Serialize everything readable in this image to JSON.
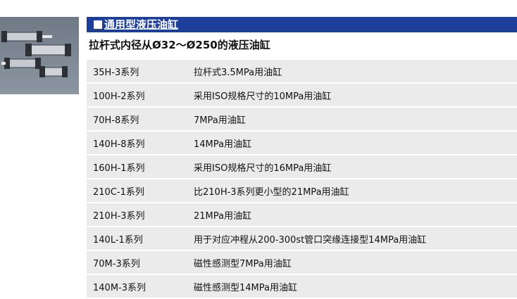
{
  "header": {
    "title": "通用型液压油缸"
  },
  "subtitle": "拉杆式内径从Ø32～Ø250的液压油缸",
  "series": [
    {
      "model": "35H-3系列",
      "desc": "拉杆式3.5MPa用油缸"
    },
    {
      "model": "100H-2系列",
      "desc": "采用ISO规格尺寸的10MPa用油缸"
    },
    {
      "model": "70H-8系列",
      "desc": "7MPa用油缸"
    },
    {
      "model": "140H-8系列",
      "desc": "14MPa用油缸"
    },
    {
      "model": "160H-1系列",
      "desc": "采用ISO规格尺寸的16MPa用油缸"
    },
    {
      "model": "210C-1系列",
      "desc": "比210H-3系列更小型的21MPa用油缸"
    },
    {
      "model": "210H-3系列",
      "desc": "21MPa用油缸"
    },
    {
      "model": "140L-1系列",
      "desc": "用于对应冲程从200-300st管口突缘连接型14MPa用油缸"
    },
    {
      "model": "70M-3系列",
      "desc": "磁性感测型7MPa用油缸"
    },
    {
      "model": "140M-3系列",
      "desc": "磁性感测型14MPa用油缸"
    }
  ],
  "colors": {
    "banner": "#1d3f9a",
    "row": "#ebebeb"
  },
  "icons": {
    "zoom": "enlarge-icon"
  }
}
